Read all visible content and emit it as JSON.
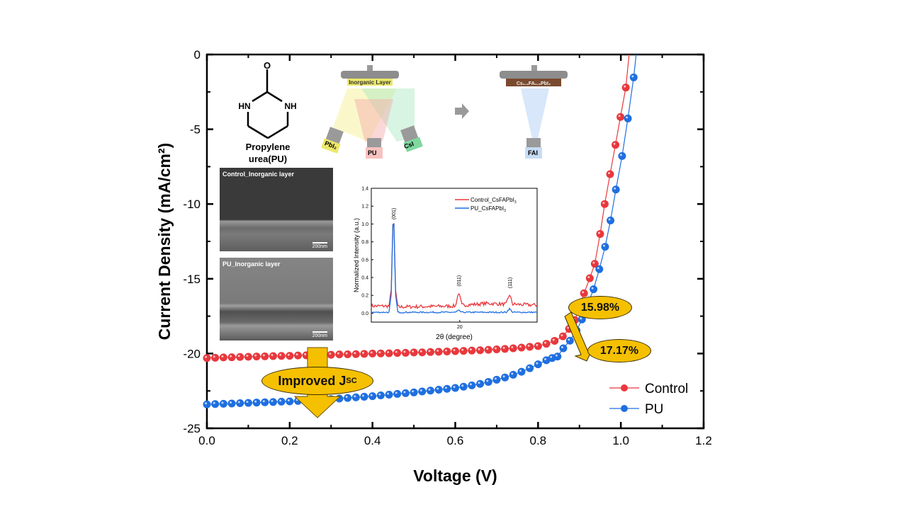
{
  "chart_data": [
    {
      "type": "scatter",
      "title": "",
      "xlabel": "Voltage (V)",
      "ylabel": "Current Density (mA/cm²)",
      "xlim": [
        0.0,
        1.2
      ],
      "ylim": [
        -25,
        0
      ],
      "xticks": [
        "0.0",
        "0.2",
        "0.4",
        "0.6",
        "0.8",
        "1.0",
        "1.2"
      ],
      "yticks": [
        "0",
        "-5",
        "-10",
        "-15",
        "-20",
        "-25"
      ],
      "legend": "bottom-right",
      "series": [
        {
          "name": "Control",
          "color": "#E8383D",
          "x": [
            0,
            0.02,
            0.04,
            0.06,
            0.08,
            0.1,
            0.12,
            0.14,
            0.16,
            0.18,
            0.2,
            0.22,
            0.24,
            0.26,
            0.28,
            0.3,
            0.32,
            0.34,
            0.36,
            0.38,
            0.4,
            0.42,
            0.44,
            0.46,
            0.48,
            0.5,
            0.52,
            0.54,
            0.56,
            0.58,
            0.6,
            0.62,
            0.64,
            0.66,
            0.68,
            0.7,
            0.72,
            0.74,
            0.76,
            0.78,
            0.8,
            0.82,
            0.84,
            0.86,
            0.875,
            0.889,
            0.911,
            0.925,
            0.937,
            0.95,
            0.961,
            0.974,
            0.987,
            0.999,
            1.012,
            1.02
          ],
          "y": [
            -20.3,
            -20.28,
            -20.26,
            -20.25,
            -20.23,
            -20.22,
            -20.2,
            -20.19,
            -20.17,
            -20.16,
            -20.15,
            -20.13,
            -20.12,
            -20.1,
            -20.09,
            -20.08,
            -20.06,
            -20.05,
            -20.04,
            -20.02,
            -20.0,
            -19.99,
            -19.98,
            -19.96,
            -19.95,
            -19.93,
            -19.92,
            -19.9,
            -19.88,
            -19.86,
            -19.84,
            -19.82,
            -19.8,
            -19.78,
            -19.75,
            -19.72,
            -19.69,
            -19.65,
            -19.6,
            -19.55,
            -19.5,
            -19.35,
            -19.15,
            -18.85,
            -18.35,
            -17.76,
            -15.97,
            -14.96,
            -14.0,
            -12.0,
            -10.0,
            -8.0,
            -6.04,
            -4.18,
            -2.21,
            0
          ]
        },
        {
          "name": "PU",
          "color": "#1F6FE0",
          "x": [
            0,
            0.02,
            0.04,
            0.06,
            0.08,
            0.1,
            0.12,
            0.14,
            0.16,
            0.18,
            0.2,
            0.22,
            0.24,
            0.26,
            0.28,
            0.3,
            0.32,
            0.34,
            0.36,
            0.38,
            0.4,
            0.42,
            0.44,
            0.46,
            0.48,
            0.5,
            0.52,
            0.54,
            0.56,
            0.58,
            0.6,
            0.62,
            0.64,
            0.66,
            0.68,
            0.7,
            0.72,
            0.74,
            0.76,
            0.78,
            0.8,
            0.82,
            0.834,
            0.847,
            0.861,
            0.877,
            0.893,
            0.906,
            0.934,
            0.948,
            0.962,
            0.975,
            0.988,
            1.003,
            1.017,
            1.031,
            1.037
          ],
          "y": [
            -23.4,
            -23.38,
            -23.36,
            -23.34,
            -23.32,
            -23.3,
            -23.28,
            -23.26,
            -23.24,
            -23.22,
            -23.2,
            -23.17,
            -23.14,
            -23.11,
            -23.08,
            -23.05,
            -23.01,
            -22.97,
            -22.93,
            -22.89,
            -22.85,
            -22.8,
            -22.75,
            -22.7,
            -22.65,
            -22.6,
            -22.54,
            -22.48,
            -22.42,
            -22.36,
            -22.3,
            -22.22,
            -22.13,
            -22.03,
            -21.9,
            -21.75,
            -21.6,
            -21.42,
            -21.22,
            -20.98,
            -20.72,
            -20.45,
            -20.3,
            -20.2,
            -19.65,
            -19.14,
            -18.46,
            -17.72,
            -15.7,
            -14.36,
            -12.86,
            -11.1,
            -9.03,
            -6.79,
            -4.28,
            -1.53,
            0
          ]
        }
      ],
      "annotations": [
        "Improved J",
        "SC",
        "15.98%",
        "17.17%"
      ]
    },
    {
      "type": "line",
      "xlabel": "2θ (degree)",
      "ylabel": "Normalized Intensity (a.u.)",
      "xlim": [
        12,
        27
      ],
      "ylim": [
        -0.1,
        1.4
      ],
      "xticks": [
        "20"
      ],
      "yticks": [
        "0.0",
        "0.2",
        "0.4",
        "0.6",
        "0.8",
        "1.0",
        "1.2",
        "1.4"
      ],
      "peak_labels": [
        "(001)",
        "(011)",
        "(111)"
      ],
      "series": [
        {
          "name": "Control_CsFAPbI",
          "sub": "3",
          "color": "#E8383D",
          "x": [
            12,
            13.6,
            13.8,
            13.95,
            14.05,
            14.2,
            14.4,
            19.6,
            19.9,
            20.2,
            21.5,
            22.5,
            24.2,
            24.5,
            24.8,
            27
          ],
          "y": [
            0.08,
            0.08,
            0.25,
            1.0,
            0.95,
            0.25,
            0.07,
            0.08,
            0.23,
            0.09,
            0.1,
            0.11,
            0.1,
            0.21,
            0.1,
            0.09
          ]
        },
        {
          "name": "PU_CsFAPbI",
          "sub": "3",
          "color": "#1F6FE0",
          "x": [
            12,
            13.6,
            13.8,
            13.95,
            14.05,
            14.2,
            14.4,
            19.6,
            19.9,
            20.2,
            24.2,
            24.5,
            24.8,
            27
          ],
          "y": [
            0.01,
            0.01,
            0.2,
            0.98,
            1.0,
            0.2,
            0.01,
            0.01,
            0.03,
            0.01,
            0.01,
            0.05,
            0.01,
            0.01
          ]
        }
      ]
    }
  ],
  "scheme": {
    "atom_o": "O",
    "atom_hn": "HN",
    "atom_nh": "NH",
    "molecule_name_1": "Propylene",
    "molecule_name_2": "urea(PU)",
    "substrate_1": "Inorganic Layer",
    "source_pbi2": "PbI₂",
    "source_pu": "PU",
    "source_csi": "CsI",
    "substrate_2": "Cs₀.₁FA₀.₉PbI₃",
    "source_fai": "FAI"
  },
  "sem": {
    "control_label": "Control_Inorganic layer",
    "pu_label": "PU_Inorganic layer",
    "scale": "200nm"
  }
}
